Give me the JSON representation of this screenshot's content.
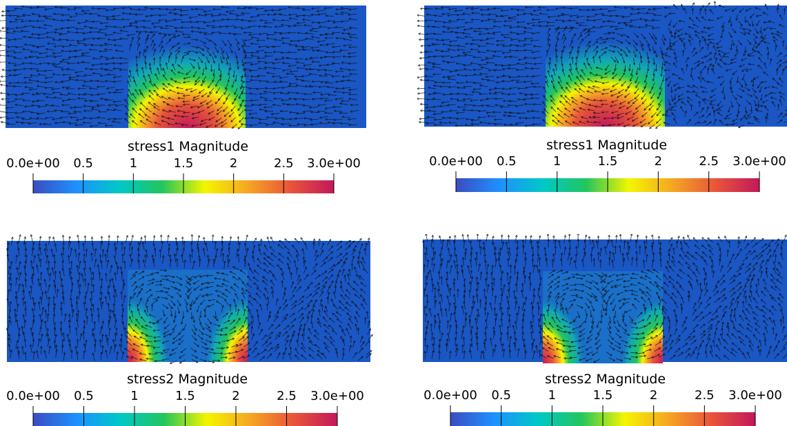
{
  "panels": [
    {
      "id": "top-left",
      "colorbar_title": "stress1 Magnitude",
      "pattern": "stress1",
      "variant": "left"
    },
    {
      "id": "top-right",
      "colorbar_title": "stress1 Magnitude",
      "pattern": "stress1",
      "variant": "right"
    },
    {
      "id": "bottom-left",
      "colorbar_title": "stress2 Magnitude",
      "pattern": "stress2",
      "variant": "left"
    },
    {
      "id": "bottom-right",
      "colorbar_title": "stress2 Magnitude",
      "pattern": "stress2",
      "variant": "right"
    }
  ],
  "colorbar": {
    "range": [
      0,
      3
    ],
    "tick_labels": [
      "0.0e+00",
      "0.5",
      "1",
      "1.5",
      "2",
      "2.5",
      "3.0e+00"
    ],
    "tick_values": [
      0,
      0.5,
      1,
      1.5,
      2,
      2.5,
      3
    ],
    "colormap": [
      "#3b4cc0",
      "#1e90ff",
      "#00c8c8",
      "#22c55e",
      "#f5f500",
      "#f5a623",
      "#e8543a",
      "#c2185b"
    ]
  },
  "colors": {
    "field_background": "#1a56c4",
    "arrow": "#111111"
  }
}
